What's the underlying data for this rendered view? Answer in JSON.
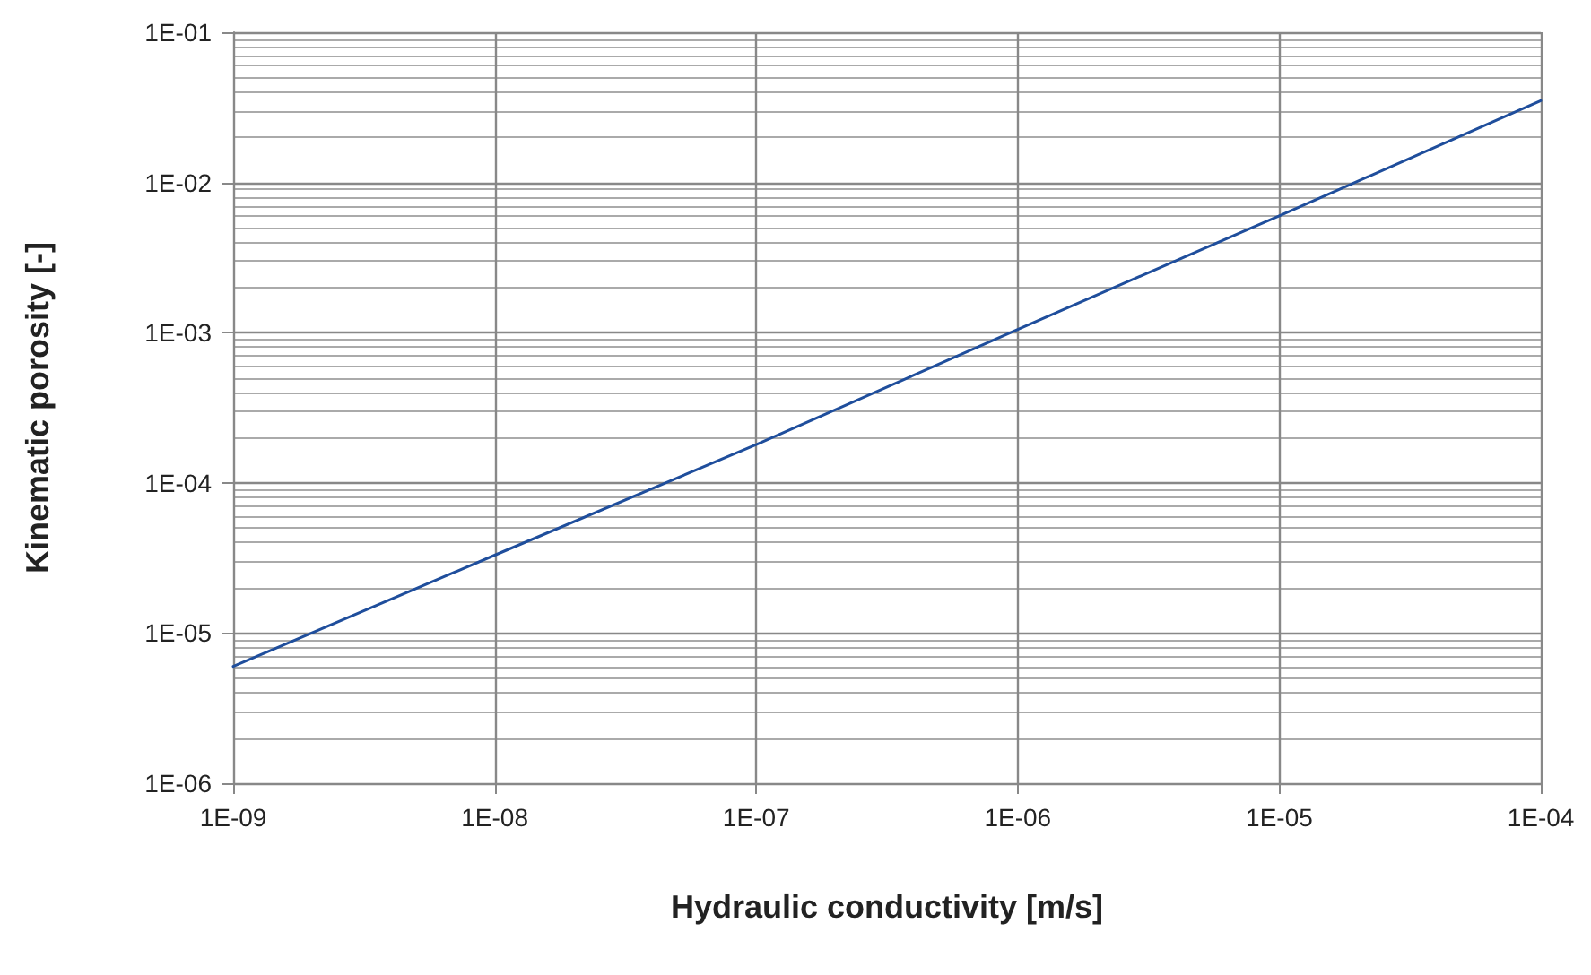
{
  "chart_data": {
    "type": "line",
    "xlabel": "Hydraulic conductivity [m/s]",
    "ylabel": "Kinematic porosity [-]",
    "x": [
      1e-09,
      1e-08,
      1e-07,
      1e-06,
      1e-05,
      0.0001
    ],
    "series": [
      {
        "color": "#1f4e9c",
        "values": [
          6e-06,
          3.3e-05,
          0.00018,
          0.00105,
          0.006,
          0.035
        ]
      }
    ],
    "log": "xy",
    "xlim": [
      1e-09,
      0.0001
    ],
    "ylim": [
      1e-06,
      0.1
    ],
    "xticks": [
      {
        "value": 1e-09,
        "label": "1E-09"
      },
      {
        "value": 1e-08,
        "label": "1E-08"
      },
      {
        "value": 1e-07,
        "label": "1E-07"
      },
      {
        "value": 1e-06,
        "label": "1E-06"
      },
      {
        "value": 1e-05,
        "label": "1E-05"
      },
      {
        "value": 0.0001,
        "label": "1E-04"
      }
    ],
    "yticks": [
      {
        "value": 1e-06,
        "label": "1E-06"
      },
      {
        "value": 1e-05,
        "label": "1E-05"
      },
      {
        "value": 0.0001,
        "label": "1E-04"
      },
      {
        "value": 0.001,
        "label": "1E-03"
      },
      {
        "value": 0.01,
        "label": "1E-02"
      },
      {
        "value": 0.1,
        "label": "1E-01"
      }
    ],
    "grid": true,
    "marker": "none",
    "line_style": "solid"
  }
}
